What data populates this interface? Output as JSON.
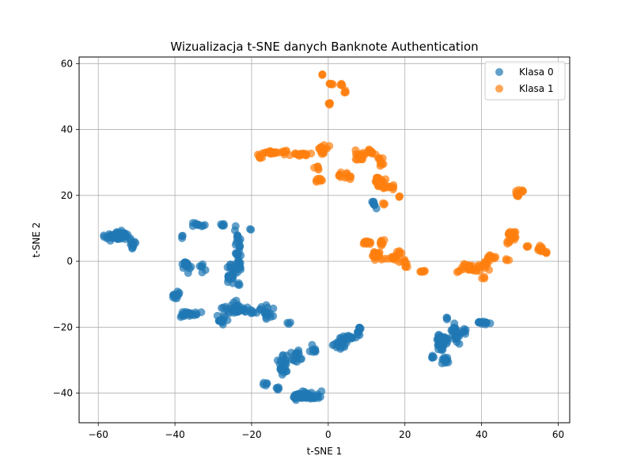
{
  "chart_data": {
    "type": "scatter",
    "title": "Wizualizacja t-SNE danych Banknote Authentication",
    "xlabel": "t-SNE 1",
    "ylabel": "t-SNE 2",
    "xlim": [
      -65,
      63
    ],
    "ylim": [
      -49,
      62
    ],
    "xticks": [
      -60,
      -40,
      -20,
      0,
      20,
      40,
      60
    ],
    "yticks": [
      -40,
      -20,
      0,
      20,
      40,
      60
    ],
    "grid": true,
    "legend_position": "top-right",
    "point_alpha": 0.7,
    "series": [
      {
        "name": "Klasa 0",
        "color": "#1f77b4",
        "clusters": [
          {
            "cx": -55,
            "cy": 7.5,
            "sx": 3,
            "sy": 1.5,
            "n": 60
          },
          {
            "cx": -51,
            "cy": 5,
            "sx": 1,
            "sy": 1.2,
            "n": 10
          },
          {
            "cx": -34,
            "cy": 11,
            "sx": 1.5,
            "sy": 0.6,
            "n": 10
          },
          {
            "cx": -38,
            "cy": 7.5,
            "sx": 0.4,
            "sy": 0.5,
            "n": 3
          },
          {
            "cx": -37,
            "cy": -1.5,
            "sx": 1,
            "sy": 2,
            "n": 20
          },
          {
            "cx": -33,
            "cy": -2,
            "sx": 0.8,
            "sy": 1.2,
            "n": 6
          },
          {
            "cx": -39.5,
            "cy": -10.5,
            "sx": 0.8,
            "sy": 1.2,
            "n": 12
          },
          {
            "cx": -36,
            "cy": -16,
            "sx": 2.5,
            "sy": 0.8,
            "n": 25
          },
          {
            "cx": -27.5,
            "cy": 11,
            "sx": 0.6,
            "sy": 0.4,
            "n": 6
          },
          {
            "cx": -25.5,
            "cy": -4,
            "sx": 1,
            "sy": 2.5,
            "n": 22
          },
          {
            "cx": -23.5,
            "cy": 1,
            "sx": 0.7,
            "sy": 8,
            "n": 40
          },
          {
            "cx": -23,
            "cy": -15,
            "sx": 4,
            "sy": 1,
            "n": 40
          },
          {
            "cx": -28,
            "cy": -18,
            "sx": 1.8,
            "sy": 1.2,
            "n": 12
          },
          {
            "cx": -24.5,
            "cy": -13,
            "sx": 1,
            "sy": 1,
            "n": 6
          },
          {
            "cx": -20.5,
            "cy": 9.5,
            "sx": 0.4,
            "sy": 0.4,
            "n": 2
          },
          {
            "cx": -16,
            "cy": -15.5,
            "sx": 1.5,
            "sy": 2,
            "n": 20
          },
          {
            "cx": -10.5,
            "cy": -19,
            "sx": 0.6,
            "sy": 0.6,
            "n": 3
          },
          {
            "cx": -12,
            "cy": -32,
            "sx": 1,
            "sy": 3,
            "n": 25
          },
          {
            "cx": -8.5,
            "cy": -28.5,
            "sx": 1.5,
            "sy": 1.8,
            "n": 15
          },
          {
            "cx": -4,
            "cy": -26.5,
            "sx": 1.2,
            "sy": 1,
            "n": 8
          },
          {
            "cx": -16.5,
            "cy": -37,
            "sx": 0.6,
            "sy": 0.6,
            "n": 5
          },
          {
            "cx": -13,
            "cy": -38.5,
            "sx": 0.6,
            "sy": 0.4,
            "n": 5
          },
          {
            "cx": -6,
            "cy": -41,
            "sx": 3.5,
            "sy": 1.3,
            "n": 50
          },
          {
            "cx": 3,
            "cy": -25.5,
            "sx": 1.5,
            "sy": 1,
            "n": 20
          },
          {
            "cx": 5.5,
            "cy": -23.5,
            "sx": 2,
            "sy": 1,
            "n": 20
          },
          {
            "cx": 8,
            "cy": -21,
            "sx": 0.6,
            "sy": 1.3,
            "n": 10
          },
          {
            "cx": 12,
            "cy": 17.5,
            "sx": 0.6,
            "sy": 1.2,
            "n": 8
          },
          {
            "cx": 29.5,
            "cy": -24.5,
            "sx": 1.5,
            "sy": 2.5,
            "n": 40
          },
          {
            "cx": 33,
            "cy": -22,
            "sx": 1,
            "sy": 3,
            "n": 22
          },
          {
            "cx": 30.5,
            "cy": -30,
            "sx": 1.2,
            "sy": 1.2,
            "n": 15
          },
          {
            "cx": 27,
            "cy": -29,
            "sx": 0.7,
            "sy": 0.5,
            "n": 5
          },
          {
            "cx": 31,
            "cy": -17,
            "sx": 0.3,
            "sy": 0.6,
            "n": 3
          },
          {
            "cx": 35.5,
            "cy": -21.5,
            "sx": 1,
            "sy": 1,
            "n": 8
          },
          {
            "cx": 40.5,
            "cy": -18.5,
            "sx": 1.5,
            "sy": 0.6,
            "n": 12
          }
        ]
      },
      {
        "name": "Klasa 1",
        "color": "#ff7f0e",
        "clusters": [
          {
            "cx": -1.5,
            "cy": 56.5,
            "sx": 0.3,
            "sy": 0.3,
            "n": 3
          },
          {
            "cx": 0.5,
            "cy": 54,
            "sx": 0.8,
            "sy": 0.5,
            "n": 6
          },
          {
            "cx": 3.5,
            "cy": 53.5,
            "sx": 0.6,
            "sy": 0.5,
            "n": 5
          },
          {
            "cx": 4.2,
            "cy": 51.5,
            "sx": 0.5,
            "sy": 0.5,
            "n": 4
          },
          {
            "cx": 0.2,
            "cy": 48,
            "sx": 0.5,
            "sy": 0.5,
            "n": 6
          },
          {
            "cx": -14,
            "cy": 33,
            "sx": 2.5,
            "sy": 0.5,
            "n": 25
          },
          {
            "cx": -18,
            "cy": 31.5,
            "sx": 0.6,
            "sy": 0.7,
            "n": 6
          },
          {
            "cx": -7.5,
            "cy": 32.5,
            "sx": 2.5,
            "sy": 0.4,
            "n": 20
          },
          {
            "cx": -1.5,
            "cy": 34,
            "sx": 1.5,
            "sy": 1.2,
            "n": 15
          },
          {
            "cx": -3,
            "cy": 28.5,
            "sx": 0.8,
            "sy": 0.6,
            "n": 5
          },
          {
            "cx": -2.5,
            "cy": 24.5,
            "sx": 1,
            "sy": 0.6,
            "n": 8
          },
          {
            "cx": 3.5,
            "cy": 26,
            "sx": 1.5,
            "sy": 0.8,
            "n": 10
          },
          {
            "cx": 5.8,
            "cy": 25.5,
            "sx": 0.6,
            "sy": 0.5,
            "n": 4
          },
          {
            "cx": 8,
            "cy": 32,
            "sx": 1.2,
            "sy": 1.5,
            "n": 18
          },
          {
            "cx": 11,
            "cy": 33,
            "sx": 1.5,
            "sy": 0.8,
            "n": 12
          },
          {
            "cx": 13.5,
            "cy": 30,
            "sx": 0.8,
            "sy": 1.5,
            "n": 10
          },
          {
            "cx": 13.5,
            "cy": 24,
            "sx": 1.2,
            "sy": 1.5,
            "n": 25
          },
          {
            "cx": 16,
            "cy": 22.5,
            "sx": 1.2,
            "sy": 0.6,
            "n": 10
          },
          {
            "cx": 18.5,
            "cy": 19.5,
            "sx": 0.4,
            "sy": 0.4,
            "n": 3
          },
          {
            "cx": 14.5,
            "cy": 17.5,
            "sx": 0.4,
            "sy": 0.4,
            "n": 3
          },
          {
            "cx": 10,
            "cy": 5.5,
            "sx": 1.5,
            "sy": 0.5,
            "n": 12
          },
          {
            "cx": 12.5,
            "cy": 2,
            "sx": 1.5,
            "sy": 1.5,
            "n": 20
          },
          {
            "cx": 14,
            "cy": 5.5,
            "sx": 0.5,
            "sy": 1,
            "n": 8
          },
          {
            "cx": 16.5,
            "cy": 1,
            "sx": 1.5,
            "sy": 0.6,
            "n": 12
          },
          {
            "cx": 18.5,
            "cy": 2.5,
            "sx": 0.6,
            "sy": 1,
            "n": 6
          },
          {
            "cx": 19.5,
            "cy": 0,
            "sx": 0.8,
            "sy": 0.8,
            "n": 6
          },
          {
            "cx": 20.5,
            "cy": -1.5,
            "sx": 0.4,
            "sy": 0.4,
            "n": 3
          },
          {
            "cx": 25,
            "cy": -3,
            "sx": 0.8,
            "sy": 0.3,
            "n": 6
          },
          {
            "cx": 34,
            "cy": -3,
            "sx": 0.6,
            "sy": 0.5,
            "n": 3
          },
          {
            "cx": 37,
            "cy": -2,
            "sx": 2,
            "sy": 1.2,
            "n": 20
          },
          {
            "cx": 40.5,
            "cy": -1.5,
            "sx": 1.5,
            "sy": 1.5,
            "n": 15
          },
          {
            "cx": 40.5,
            "cy": -5,
            "sx": 0.6,
            "sy": 0.5,
            "n": 3
          },
          {
            "cx": 43.5,
            "cy": 1,
            "sx": 1.5,
            "sy": 1,
            "n": 10
          },
          {
            "cx": 47,
            "cy": 0.5,
            "sx": 0.6,
            "sy": 0.4,
            "n": 3
          },
          {
            "cx": 48,
            "cy": 8,
            "sx": 1,
            "sy": 1.2,
            "n": 20
          },
          {
            "cx": 47,
            "cy": 6,
            "sx": 0.6,
            "sy": 0.6,
            "n": 5
          },
          {
            "cx": 49.5,
            "cy": 20.5,
            "sx": 0.5,
            "sy": 1,
            "n": 10
          },
          {
            "cx": 50.5,
            "cy": 21.5,
            "sx": 0.5,
            "sy": 0.4,
            "n": 3
          },
          {
            "cx": 52,
            "cy": 4.5,
            "sx": 0.6,
            "sy": 0.3,
            "n": 4
          },
          {
            "cx": 55.5,
            "cy": 4,
            "sx": 0.8,
            "sy": 1.2,
            "n": 15
          },
          {
            "cx": 56.5,
            "cy": 3,
            "sx": 0.4,
            "sy": 0.4,
            "n": 4
          }
        ]
      }
    ]
  }
}
